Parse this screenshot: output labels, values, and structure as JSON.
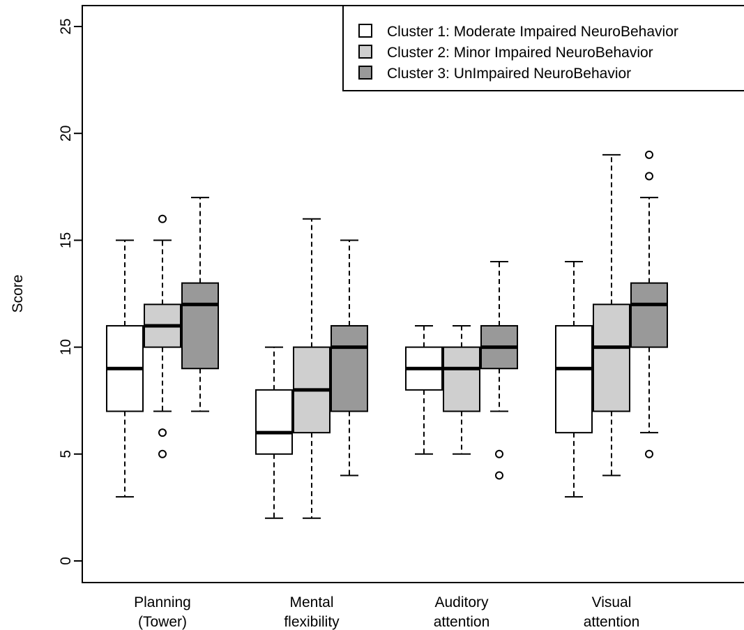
{
  "chart_data": {
    "type": "boxplot",
    "ylabel": "Score",
    "xlabel": "",
    "ylim": [
      0,
      25
    ],
    "yticks": [
      0,
      5,
      10,
      15,
      20,
      25
    ],
    "categories": [
      "Planning\n(Tower)",
      "Mental\nflexibility",
      "Auditory\nattention",
      "Visual\nattention"
    ],
    "legend_position": "top-right",
    "series": [
      {
        "name": "Cluster 1: Moderate Impaired NeuroBehavior",
        "color": "#ffffff",
        "boxes": [
          {
            "whisker_low": 3,
            "q1": 7,
            "median": 9,
            "q3": 11,
            "whisker_high": 15,
            "outliers": []
          },
          {
            "whisker_low": 2,
            "q1": 5,
            "median": 6,
            "q3": 8,
            "whisker_high": 10,
            "outliers": []
          },
          {
            "whisker_low": 5,
            "q1": 8,
            "median": 9,
            "q3": 10,
            "whisker_high": 11,
            "outliers": []
          },
          {
            "whisker_low": 3,
            "q1": 6,
            "median": 9,
            "q3": 11,
            "whisker_high": 14,
            "outliers": []
          }
        ]
      },
      {
        "name": "Cluster 2: Minor Impaired NeuroBehavior",
        "color": "#cfcfcf",
        "boxes": [
          {
            "whisker_low": 7,
            "q1": 10,
            "median": 11,
            "q3": 12,
            "whisker_high": 15,
            "outliers": [
              16,
              6,
              5
            ]
          },
          {
            "whisker_low": 2,
            "q1": 6,
            "median": 8,
            "q3": 10,
            "whisker_high": 16,
            "outliers": []
          },
          {
            "whisker_low": 5,
            "q1": 7,
            "median": 9,
            "q3": 10,
            "whisker_high": 11,
            "outliers": []
          },
          {
            "whisker_low": 4,
            "q1": 7,
            "median": 10,
            "q3": 12,
            "whisker_high": 19,
            "outliers": []
          }
        ]
      },
      {
        "name": "Cluster 3: UnImpaired NeuroBehavior",
        "color": "#999999",
        "boxes": [
          {
            "whisker_low": 7,
            "q1": 9,
            "median": 12,
            "q3": 13,
            "whisker_high": 17,
            "outliers": []
          },
          {
            "whisker_low": 4,
            "q1": 7,
            "median": 10,
            "q3": 11,
            "whisker_high": 15,
            "outliers": []
          },
          {
            "whisker_low": 7,
            "q1": 9,
            "median": 10,
            "q3": 11,
            "whisker_high": 14,
            "outliers": [
              5,
              4
            ]
          },
          {
            "whisker_low": 6,
            "q1": 10,
            "median": 12,
            "q3": 13,
            "whisker_high": 17,
            "outliers": [
              19,
              18,
              5
            ]
          }
        ]
      }
    ]
  }
}
